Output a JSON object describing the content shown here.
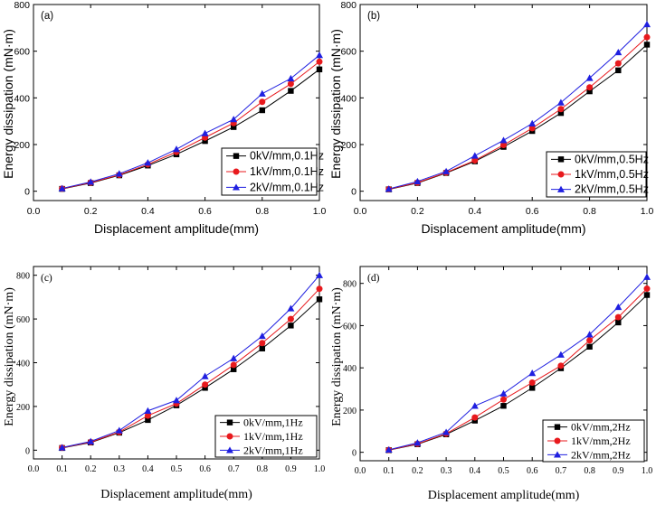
{
  "colors": {
    "series0": "#000000",
    "series1": "#e8191d",
    "series2": "#1f1fe0"
  },
  "chart_data": [
    {
      "type": "line",
      "panel_label": "(a)",
      "xlabel": "Displacement amplitude(mm)",
      "ylabel": "Energy dissipation (mN·m)",
      "xlim": [
        0.0,
        1.0
      ],
      "ylim": [
        -40,
        800
      ],
      "x_ticks": [
        "0.0",
        "0.2",
        "0.4",
        "0.6",
        "0.8",
        "1.0"
      ],
      "y_ticks": [
        "0",
        "200",
        "400",
        "600",
        "800"
      ],
      "x": [
        0.1,
        0.2,
        0.3,
        0.4,
        0.5,
        0.6,
        0.7,
        0.8,
        0.9,
        1.0
      ],
      "legend_position": "bottom-right",
      "series": [
        {
          "name": "0kV/mm,0.1Hz",
          "marker": "square",
          "values": [
            10,
            35,
            68,
            110,
            158,
            215,
            275,
            347,
            430,
            522
          ]
        },
        {
          "name": "1kV/mm,0.1Hz",
          "marker": "circle",
          "values": [
            11,
            37,
            70,
            115,
            168,
            230,
            292,
            383,
            460,
            555
          ]
        },
        {
          "name": "2kV/mm,0.1Hz",
          "marker": "triangle",
          "values": [
            12,
            40,
            75,
            122,
            180,
            248,
            308,
            418,
            483,
            583
          ]
        }
      ]
    },
    {
      "type": "line",
      "panel_label": "(b)",
      "xlabel": "Displacement amplitude(mm)",
      "ylabel": "Energy dissipation (mN·m)",
      "xlim": [
        0.0,
        1.0
      ],
      "ylim": [
        -40,
        800
      ],
      "x_ticks": [
        "0.0",
        "0.2",
        "0.4",
        "0.6",
        "0.8",
        "1.0"
      ],
      "y_ticks": [
        "0",
        "200",
        "400",
        "600",
        "800"
      ],
      "x": [
        0.1,
        0.2,
        0.3,
        0.4,
        0.5,
        0.6,
        0.7,
        0.8,
        0.9,
        1.0
      ],
      "legend_position": "bottom-right",
      "series": [
        {
          "name": "0kV/mm,0.5Hz",
          "marker": "square",
          "values": [
            8,
            35,
            78,
            128,
            190,
            258,
            335,
            428,
            518,
            628
          ]
        },
        {
          "name": "1kV/mm,0.5Hz",
          "marker": "circle",
          "values": [
            9,
            37,
            80,
            132,
            198,
            270,
            352,
            445,
            548,
            660
          ]
        },
        {
          "name": "2kV/mm,0.5Hz",
          "marker": "triangle",
          "values": [
            10,
            42,
            85,
            152,
            218,
            290,
            380,
            485,
            595,
            715
          ]
        }
      ]
    },
    {
      "type": "line",
      "panel_label": "(c)",
      "xlabel": "Displacement amplitude(mm)",
      "ylabel": "Energy dissipation (mN·m)",
      "xlim": [
        0.0,
        1.0
      ],
      "ylim": [
        -40,
        840
      ],
      "x_ticks": [
        "0.0",
        "0.1",
        "0.2",
        "0.3",
        "0.4",
        "0.5",
        "0.6",
        "0.7",
        "0.8",
        "0.9",
        "1.0"
      ],
      "y_ticks": [
        "0",
        "200",
        "400",
        "600",
        "800"
      ],
      "x": [
        0.1,
        0.2,
        0.3,
        0.4,
        0.5,
        0.6,
        0.7,
        0.8,
        0.9,
        1.0
      ],
      "legend_position": "bottom-right",
      "series": [
        {
          "name": "0kV/mm,1Hz",
          "marker": "square",
          "values": [
            10,
            35,
            80,
            138,
            205,
            285,
            370,
            465,
            570,
            690
          ]
        },
        {
          "name": "1kV/mm,1Hz",
          "marker": "circle",
          "values": [
            11,
            37,
            83,
            158,
            213,
            300,
            390,
            490,
            600,
            738
          ]
        },
        {
          "name": "2kV/mm,1Hz",
          "marker": "triangle",
          "values": [
            12,
            40,
            90,
            180,
            228,
            338,
            420,
            522,
            648,
            800
          ]
        }
      ]
    },
    {
      "type": "line",
      "panel_label": "(d)",
      "xlabel": "Displacement amplitude(mm)",
      "ylabel": "Energy dissipation (mN·m)",
      "xlim": [
        0.0,
        1.0
      ],
      "ylim": [
        -40,
        880
      ],
      "x_ticks": [
        "0.0",
        "0.1",
        "0.2",
        "0.3",
        "0.4",
        "0.5",
        "0.6",
        "0.7",
        "0.8",
        "0.9",
        "1.0"
      ],
      "y_ticks": [
        "0",
        "200",
        "400",
        "600",
        "800"
      ],
      "x": [
        0.1,
        0.2,
        0.3,
        0.4,
        0.5,
        0.6,
        0.7,
        0.8,
        0.9,
        1.0
      ],
      "legend_position": "bottom-right",
      "series": [
        {
          "name": "0kV/mm,2Hz",
          "marker": "square",
          "values": [
            10,
            38,
            85,
            150,
            220,
            305,
            398,
            500,
            615,
            745
          ]
        },
        {
          "name": "1kV/mm,2Hz",
          "marker": "circle",
          "values": [
            11,
            40,
            88,
            165,
            250,
            330,
            410,
            530,
            640,
            775
          ]
        },
        {
          "name": "2kV/mm,2Hz",
          "marker": "triangle",
          "values": [
            12,
            45,
            95,
            220,
            278,
            375,
            462,
            558,
            688,
            830
          ]
        }
      ]
    }
  ]
}
